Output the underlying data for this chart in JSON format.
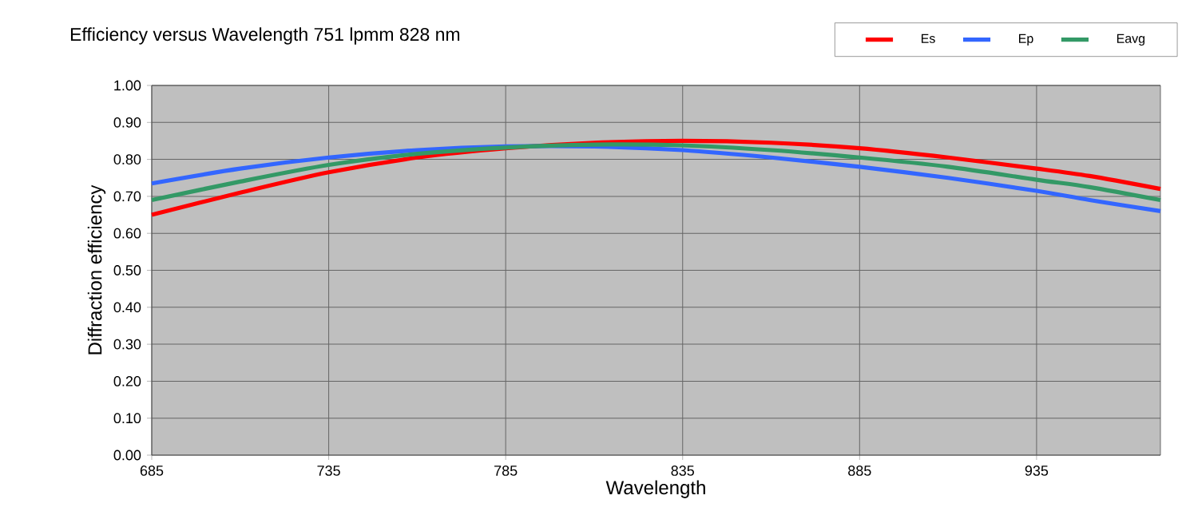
{
  "chart_data": {
    "type": "line",
    "title": "Efficiency versus Wavelength    751 lpmm   828 nm",
    "xlabel": "Wavelength",
    "ylabel": "Diffraction efficiency",
    "x": [
      685,
      710,
      735,
      760,
      785,
      810,
      835,
      860,
      885,
      910,
      935,
      950,
      970
    ],
    "series": [
      {
        "name": "Es",
        "color": "#ff0000",
        "values": [
          0.65,
          0.71,
          0.765,
          0.805,
          0.83,
          0.845,
          0.85,
          0.845,
          0.83,
          0.805,
          0.775,
          0.755,
          0.72
        ]
      },
      {
        "name": "Ep",
        "color": "#3366ff",
        "values": [
          0.735,
          0.775,
          0.805,
          0.825,
          0.835,
          0.835,
          0.825,
          0.805,
          0.78,
          0.75,
          0.715,
          0.69,
          0.66
        ]
      },
      {
        "name": "Eavg",
        "color": "#339966",
        "values": [
          0.69,
          0.74,
          0.785,
          0.815,
          0.832,
          0.84,
          0.838,
          0.825,
          0.805,
          0.78,
          0.745,
          0.725,
          0.69
        ]
      }
    ],
    "xlim": [
      685,
      970
    ],
    "xticks": [
      685,
      735,
      785,
      835,
      885,
      935
    ],
    "ylim": [
      0,
      1
    ],
    "yticks": [
      {
        "value": 0,
        "label": "0.00"
      },
      {
        "value": 0.1,
        "label": "0.10"
      },
      {
        "value": 0.2,
        "label": "0.20"
      },
      {
        "value": 0.3,
        "label": "0.30"
      },
      {
        "value": 0.4,
        "label": "0.40"
      },
      {
        "value": 0.5,
        "label": "0.50"
      },
      {
        "value": 0.6,
        "label": "0.60"
      },
      {
        "value": 0.7,
        "label": "0.70"
      },
      {
        "value": 0.8,
        "label": "0.80"
      },
      {
        "value": 0.9,
        "label": "0.90"
      },
      {
        "value": 1,
        "label": "1.00"
      }
    ],
    "grid": true,
    "legend": "top right",
    "marker": "none",
    "line_style": "solid"
  }
}
